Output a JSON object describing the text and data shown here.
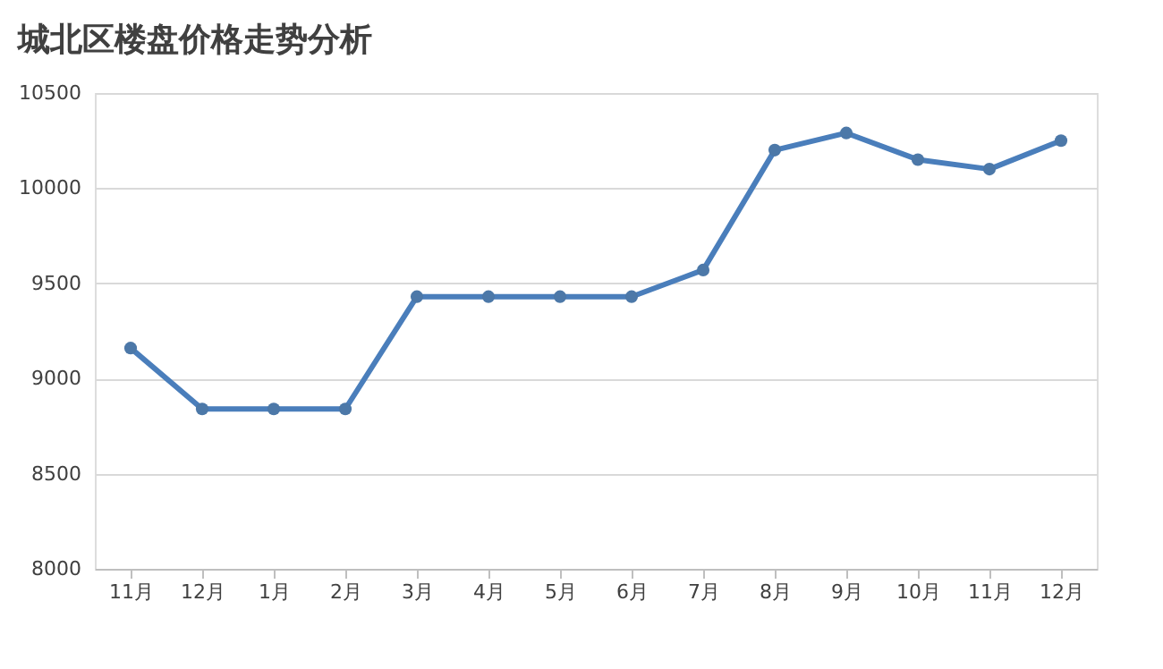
{
  "chart_data": {
    "type": "line",
    "title": "城北区楼盘价格走势分析",
    "categories": [
      "11月",
      "12月",
      "1月",
      "2月",
      "3月",
      "4月",
      "5月",
      "6月",
      "7月",
      "8月",
      "9月",
      "10月",
      "11月",
      "12月"
    ],
    "series": [
      {
        "color": "#4a7ebb",
        "values": [
          9160,
          8840,
          8840,
          8840,
          9430,
          9430,
          9430,
          9430,
          9570,
          10200,
          10290,
          10150,
          10100,
          10250
        ]
      }
    ],
    "ylim": [
      8000,
      10500
    ],
    "yticks": [
      8000,
      8500,
      9000,
      9500,
      10000,
      10500
    ],
    "grid": "y",
    "marker": "circle",
    "line_style": "solid"
  }
}
